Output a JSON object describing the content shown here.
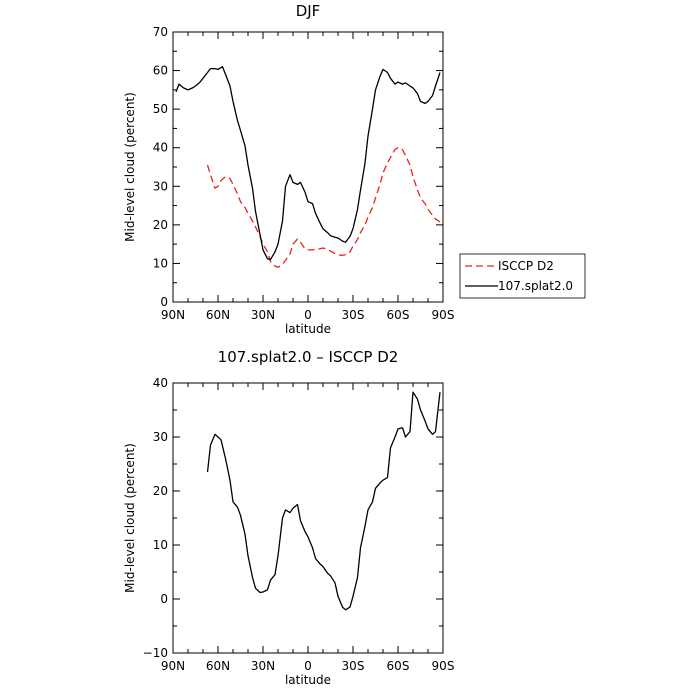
{
  "chart_data": [
    {
      "type": "line",
      "title": "DJF",
      "xlabel": "latitude",
      "ylabel": "Mid-level cloud (percent)",
      "xlim": [
        90,
        -90
      ],
      "ylim": [
        0,
        70
      ],
      "xticks": [
        90,
        60,
        30,
        0,
        -30,
        -60,
        -90
      ],
      "xtick_labels": [
        "90N",
        "60N",
        "30N",
        "0",
        "30S",
        "60S",
        "90S"
      ],
      "yticks": [
        0,
        10,
        20,
        30,
        40,
        50,
        60,
        70
      ],
      "ytick_labels": [
        "0",
        "10",
        "20",
        "30",
        "40",
        "50",
        "60",
        "70"
      ],
      "grid": false,
      "legend": {
        "placement": "outside-right",
        "entries": [
          "ISCCP D2",
          "107.splat2.0"
        ]
      },
      "series": [
        {
          "name": "ISCCP D2",
          "color": "#e8231d",
          "dash": "dashed",
          "x": [
            67,
            65,
            62,
            60,
            58,
            55,
            52,
            50,
            47,
            45,
            42,
            40,
            37,
            35,
            32,
            30,
            27,
            25,
            22,
            20,
            17,
            15,
            12,
            10,
            7,
            5,
            2,
            0,
            -3,
            -5,
            -8,
            -10,
            -13,
            -15,
            -18,
            -20,
            -23,
            -25,
            -28,
            -30,
            -33,
            -35,
            -38,
            -40,
            -43,
            -45,
            -48,
            -50,
            -53,
            -55,
            -58,
            -60,
            -63,
            -65,
            -68,
            -70,
            -73,
            -75,
            -78,
            -80,
            -83,
            -85,
            -88
          ],
          "y": [
            35.5,
            33,
            29.5,
            30,
            31.5,
            32.5,
            32,
            30.5,
            28,
            26,
            24.5,
            23,
            21,
            19.5,
            17,
            15,
            13,
            10.5,
            9.3,
            9,
            9.7,
            10.8,
            12.4,
            15,
            16.3,
            15.5,
            13.8,
            13.5,
            13.5,
            13.7,
            13.8,
            14,
            13.6,
            13.2,
            12.6,
            12.2,
            12.1,
            12.3,
            13,
            14.5,
            16.2,
            18,
            20,
            22,
            24.5,
            27,
            30.5,
            33.5,
            36,
            37.5,
            39.5,
            40,
            39.5,
            38,
            35.5,
            32.5,
            29,
            27,
            25.5,
            24,
            22.5,
            21.5,
            20.8
          ]
        },
        {
          "name": "107.splat2.0",
          "color": "#000000",
          "dash": "solid",
          "x": [
            88,
            86,
            83,
            80,
            77,
            75,
            72,
            70,
            67,
            65,
            62,
            60,
            57,
            55,
            52,
            50,
            47,
            45,
            42,
            40,
            37,
            35,
            32,
            30,
            27,
            25,
            22,
            20,
            17,
            15,
            12,
            10,
            7,
            5,
            2,
            0,
            -3,
            -5,
            -8,
            -10,
            -13,
            -15,
            -18,
            -20,
            -23,
            -25,
            -28,
            -30,
            -33,
            -35,
            -38,
            -40,
            -43,
            -45,
            -48,
            -50,
            -53,
            -55,
            -58,
            -60,
            -63,
            -65,
            -68,
            -70,
            -73,
            -75,
            -78,
            -80,
            -83,
            -85,
            -88
          ],
          "y": [
            54.5,
            56.5,
            55.5,
            55,
            55.5,
            56,
            57,
            58,
            59.5,
            60.5,
            60.5,
            60.3,
            61,
            59,
            56,
            52,
            47,
            44.5,
            40.5,
            35.5,
            29.5,
            23.5,
            17.5,
            13.5,
            11.2,
            11,
            13,
            15,
            21,
            30,
            33,
            31,
            30.5,
            31,
            28.5,
            26,
            25.5,
            23,
            20.5,
            19,
            18,
            17.2,
            16.8,
            16.6,
            15.8,
            15.5,
            17,
            19,
            24,
            29,
            36,
            43,
            50,
            55,
            58.5,
            60.3,
            59.5,
            58,
            56.5,
            57,
            56.5,
            56.8,
            56,
            55.5,
            54,
            52,
            51.5,
            52,
            53.5,
            56,
            59.5
          ]
        }
      ]
    },
    {
      "type": "line",
      "title": "107.splat2.0 – ISCCP D2",
      "xlabel": "latitude",
      "ylabel": "Mid-level cloud (percent)",
      "xlim": [
        90,
        -90
      ],
      "ylim": [
        -10,
        40
      ],
      "xticks": [
        90,
        60,
        30,
        0,
        -30,
        -60,
        -90
      ],
      "xtick_labels": [
        "90N",
        "60N",
        "30N",
        "0",
        "30S",
        "60S",
        "90S"
      ],
      "yticks": [
        -10,
        0,
        10,
        20,
        30,
        40
      ],
      "ytick_labels": [
        "−10",
        "0",
        "10",
        "20",
        "30",
        "40"
      ],
      "grid": false,
      "series": [
        {
          "color": "#000000",
          "dash": "solid",
          "x": [
            67,
            65,
            62,
            60,
            58,
            55,
            52,
            50,
            47,
            45,
            42,
            40,
            37,
            35,
            32,
            30,
            27,
            25,
            22,
            20,
            17,
            15,
            12,
            10,
            7,
            5,
            2,
            0,
            -3,
            -5,
            -8,
            -10,
            -13,
            -15,
            -18,
            -20,
            -23,
            -25,
            -28,
            -30,
            -33,
            -35,
            -38,
            -40,
            -43,
            -45,
            -48,
            -50,
            -53,
            -55,
            -58,
            -60,
            -63,
            -65,
            -68,
            -70,
            -73,
            -75,
            -78,
            -80,
            -83,
            -85,
            -88
          ],
          "y": [
            23.5,
            28.5,
            30.5,
            30,
            29.5,
            26,
            22,
            18,
            17,
            15.5,
            12,
            8,
            4,
            2,
            1.2,
            1.3,
            1.7,
            3.5,
            4.5,
            8,
            15,
            16.5,
            16,
            16.8,
            17.5,
            14.5,
            12.5,
            11.5,
            9.5,
            7.5,
            6.5,
            6,
            4.8,
            4.3,
            3,
            0.5,
            -1.5,
            -2,
            -1.5,
            0.5,
            4,
            9.5,
            13.5,
            16.5,
            18,
            20.5,
            21.5,
            22,
            22.5,
            28,
            30,
            31.5,
            31.7,
            30,
            31,
            38.3,
            37,
            35,
            33,
            31.5,
            30.5,
            31,
            38.3
          ]
        }
      ]
    }
  ]
}
